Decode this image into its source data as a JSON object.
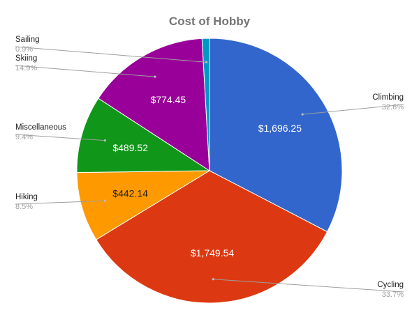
{
  "chart_data": {
    "type": "pie",
    "title": "Cost of Hobby",
    "start_angle_deg": 0,
    "direction": "clockwise",
    "legend_placement": "outside-labels",
    "slices": [
      {
        "name": "Climbing",
        "value": 1696.25,
        "value_label": "$1,696.25",
        "percent_label": "32.6%",
        "color": "#3366cc",
        "label_color": "#ffffff"
      },
      {
        "name": "Cycling",
        "value": 1749.54,
        "value_label": "$1,749.54",
        "percent_label": "33.7%",
        "color": "#dc3912",
        "label_color": "#ffffff"
      },
      {
        "name": "Hiking",
        "value": 442.14,
        "value_label": "$442.14",
        "percent_label": "8.5%",
        "color": "#ff9900",
        "label_color": "#222222"
      },
      {
        "name": "Miscellaneous",
        "value": 489.52,
        "value_label": "$489.52",
        "percent_label": "9.4%",
        "color": "#109618",
        "label_color": "#ffffff"
      },
      {
        "name": "Skiing",
        "value": 774.45,
        "value_label": "$774.45",
        "percent_label": "14.9%",
        "color": "#990099",
        "label_color": "#ffffff"
      },
      {
        "name": "Sailing",
        "value": 46.8,
        "value_label": "",
        "percent_label": "0.9%",
        "color": "#0099c6",
        "label_color": "#ffffff"
      }
    ]
  }
}
